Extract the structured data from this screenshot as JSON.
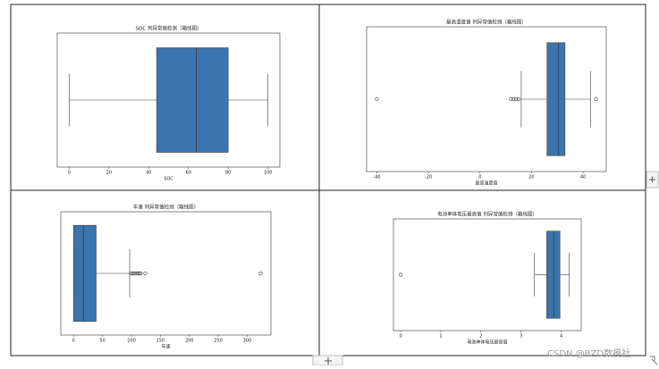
{
  "chart_data": [
    {
      "type": "box",
      "title": "SOC 列异常值检测（箱线图）",
      "x_label": "SOC",
      "color": "#3b75af",
      "xlim": [
        -6,
        106
      ],
      "xticks": [
        0,
        20,
        40,
        60,
        80,
        100
      ],
      "box": {
        "whisker_low": 0,
        "q1": 44,
        "median": 64,
        "q3": 80,
        "whisker_high": 100
      },
      "outliers": []
    },
    {
      "type": "box",
      "title": "最高温度值 列异常值检测（箱线图）",
      "x_label": "最高温度值",
      "color": "#3b75af",
      "xlim": [
        -44,
        49
      ],
      "xticks": [
        -40,
        -20,
        0,
        20,
        40
      ],
      "box": {
        "whisker_low": 16,
        "q1": 26,
        "median": 30.5,
        "q3": 33,
        "whisker_high": 43
      },
      "outliers": [
        -40,
        12,
        13,
        14,
        15,
        45
      ]
    },
    {
      "type": "box",
      "title": "车速 列异常值检测（箱线图）",
      "x_label": "车速",
      "color": "#3b75af",
      "xlim": [
        -22,
        341
      ],
      "xticks": [
        0,
        50,
        100,
        150,
        200,
        250,
        300
      ],
      "box": {
        "whisker_low": 0,
        "q1": 0,
        "median": 17,
        "q3": 39,
        "whisker_high": 97
      },
      "outliers": [
        99,
        102,
        105,
        108,
        111,
        114,
        116,
        124,
        323
      ]
    },
    {
      "type": "box",
      "title": "电池单体电压最高值 列异常值检测（箱线图）",
      "x_label": "电池单体电压最高值",
      "color": "#3b75af",
      "xlim": [
        -0.18,
        4.5
      ],
      "xticks": [
        0,
        1,
        2,
        3,
        4
      ],
      "box": {
        "whisker_low": 3.33,
        "q1": 3.64,
        "median": 3.82,
        "q3": 3.97,
        "whisker_high": 4.2
      },
      "outliers": [
        0
      ]
    }
  ],
  "watermark": "CSDN @BZD数模社"
}
